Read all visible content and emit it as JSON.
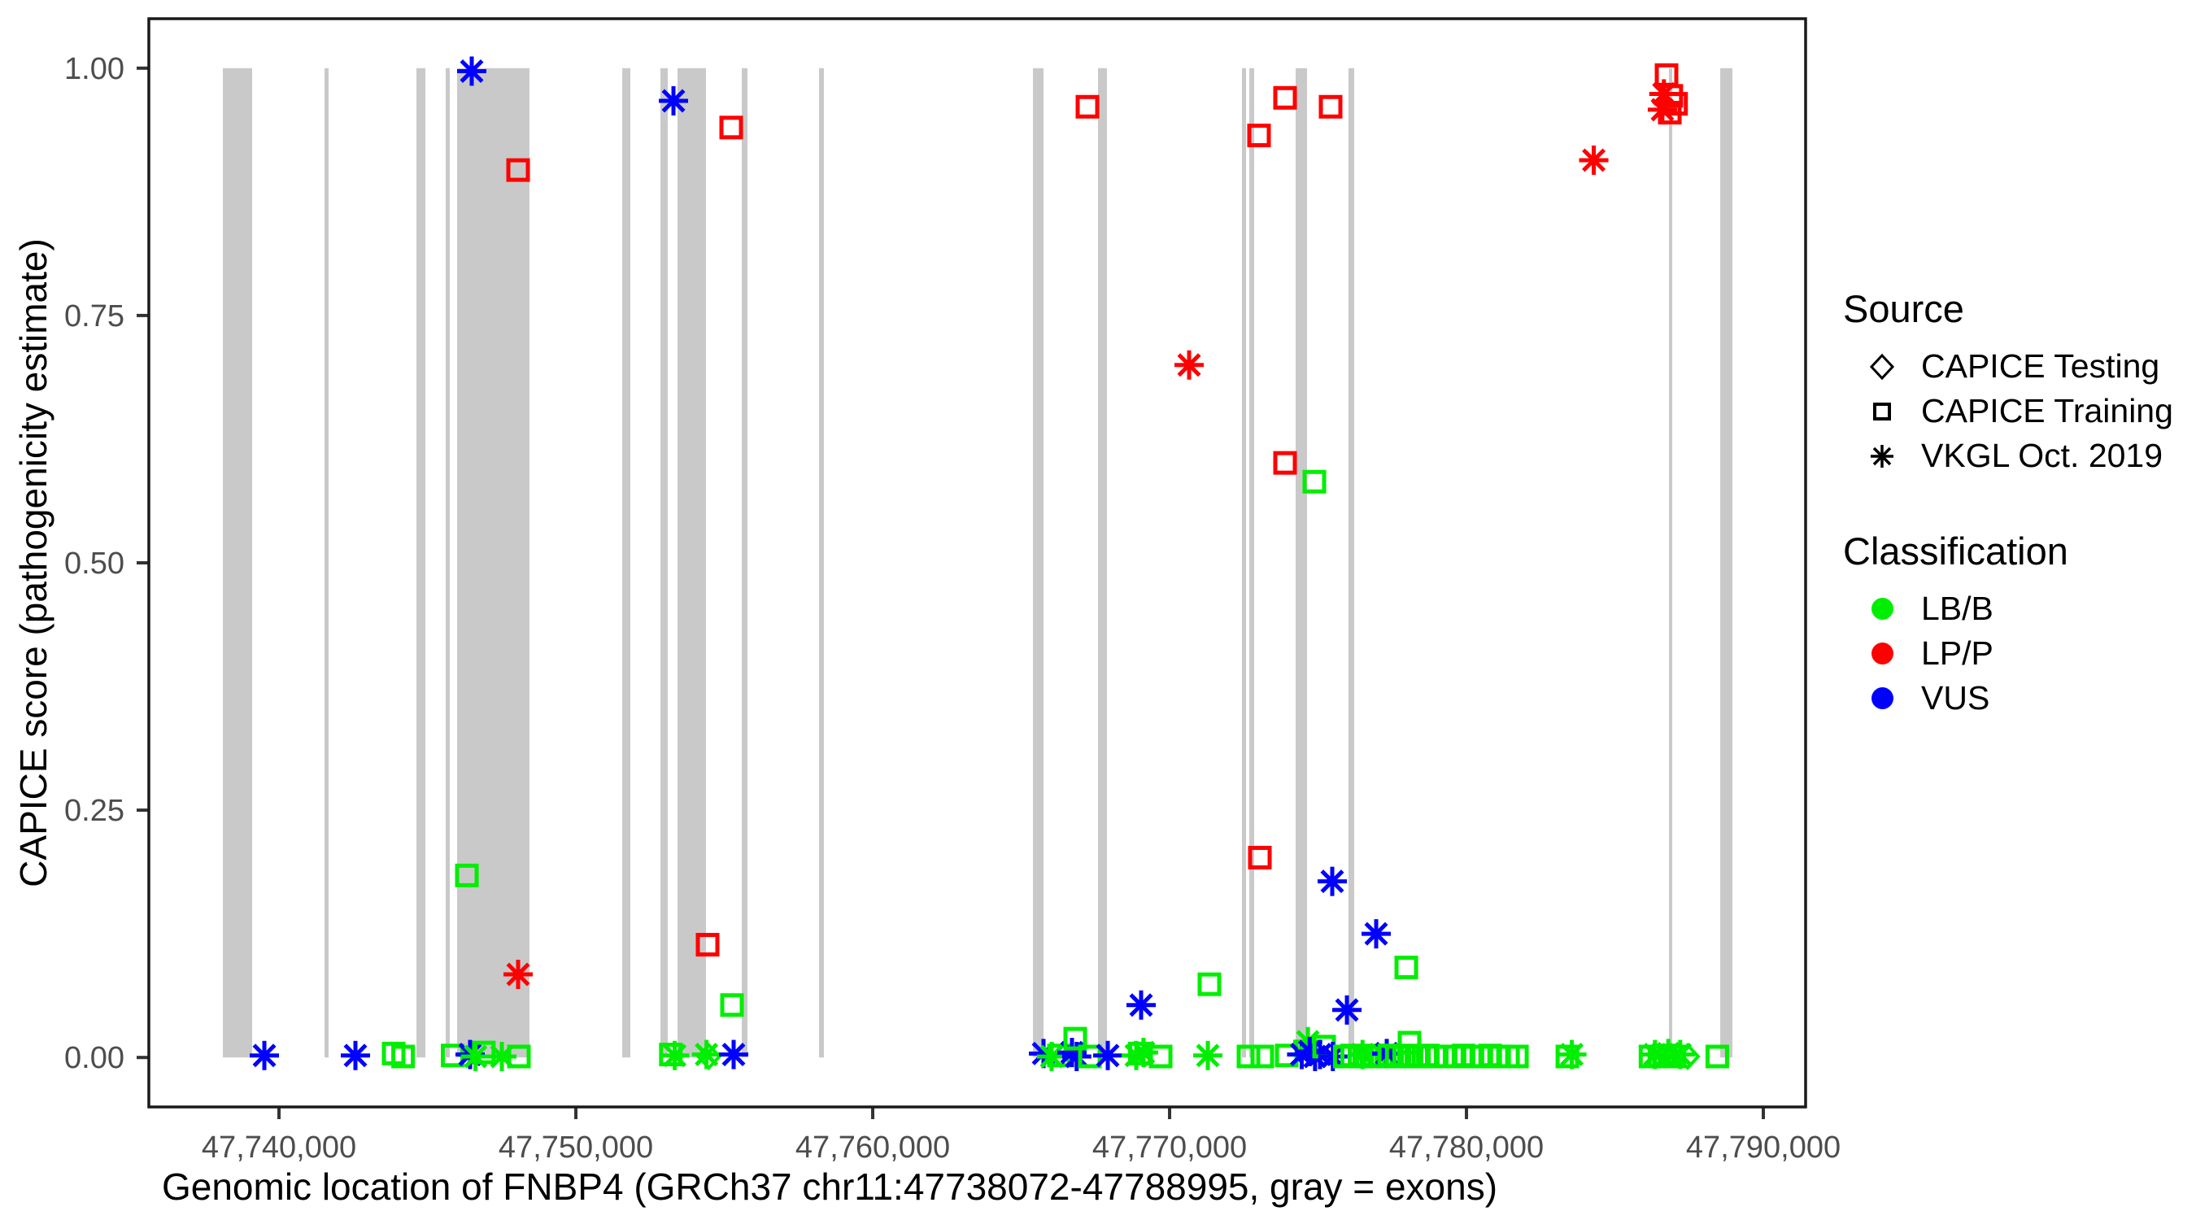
{
  "chart_data": {
    "type": "scatter",
    "xlabel": "Genomic location of FNBP4 (GRCh37 chr11:47738072-47788995, gray = exons)",
    "ylabel": "CAPICE score (pathogenicity estimate)",
    "x_domain": [
      47735616,
      47791424
    ],
    "y_domain": [
      -0.05,
      1.05
    ],
    "grid": "off",
    "x_ticks": [
      {
        "value": 47740000,
        "label": "47,740,000"
      },
      {
        "value": 47750000,
        "label": "47,750,000"
      },
      {
        "value": 47760000,
        "label": "47,760,000"
      },
      {
        "value": 47770000,
        "label": "47,770,000"
      },
      {
        "value": 47780000,
        "label": "47,780,000"
      },
      {
        "value": 47790000,
        "label": "47,790,000"
      }
    ],
    "y_ticks": [
      {
        "value": 0.0,
        "label": "0.00"
      },
      {
        "value": 0.25,
        "label": "0.25"
      },
      {
        "value": 0.5,
        "label": "0.50"
      },
      {
        "value": 0.75,
        "label": "0.75"
      },
      {
        "value": 1.0,
        "label": "1.00"
      }
    ],
    "exon_color": "#C9C9C9",
    "exon_y_span": [
      0.0,
      1.0
    ],
    "exons": [
      [
        47738110,
        47739096
      ],
      [
        47741534,
        47741671
      ],
      [
        47744630,
        47744932
      ],
      [
        47745616,
        47745753
      ],
      [
        47746000,
        47748438
      ],
      [
        47751562,
        47751836
      ],
      [
        47752849,
        47753096
      ],
      [
        47753425,
        47754384
      ],
      [
        47755589,
        47755781
      ],
      [
        47758192,
        47758356
      ],
      [
        47765397,
        47765753
      ],
      [
        47767589,
        47767890
      ],
      [
        47772438,
        47772575
      ],
      [
        47772685,
        47772849
      ],
      [
        47774247,
        47774630
      ],
      [
        47776027,
        47776219
      ],
      [
        47786822,
        47786932
      ],
      [
        47788548,
        47788959
      ]
    ],
    "shape_codes": {
      "s": "CAPICE Training (open square)",
      "a": "VKGL Oct. 2019 (asterisk)",
      "d": "CAPICE Testing (open diamond)"
    },
    "class_codes": {
      "g": "LB/B",
      "r": "LP/P",
      "b": "VUS"
    },
    "class_colors": {
      "g": "#00EE00",
      "r": "#FF0000",
      "b": "#0000FF"
    },
    "points": [
      [
        47739507,
        0.002,
        "a",
        "b"
      ],
      [
        47742575,
        0.002,
        "a",
        "b"
      ],
      [
        47743863,
        0.004,
        "s",
        "g"
      ],
      [
        47744180,
        0.001,
        "s",
        "g"
      ],
      [
        47745850,
        0.002,
        "s",
        "g"
      ],
      [
        47746329,
        0.184,
        "s",
        "g"
      ],
      [
        47746438,
        0.003,
        "a",
        "b"
      ],
      [
        47746493,
        0.997,
        "a",
        "b"
      ],
      [
        47746620,
        0.001,
        "a",
        "g"
      ],
      [
        47746900,
        0.005,
        "s",
        "g"
      ],
      [
        47747507,
        0.001,
        "a",
        "g"
      ],
      [
        47748055,
        0.897,
        "s",
        "r"
      ],
      [
        47748055,
        0.084,
        "a",
        "r"
      ],
      [
        47748082,
        0.001,
        "s",
        "g"
      ],
      [
        47753200,
        0.003,
        "s",
        "g"
      ],
      [
        47753330,
        0.002,
        "a",
        "g"
      ],
      [
        47753288,
        0.967,
        "a",
        "b"
      ],
      [
        47754400,
        0.003,
        "a",
        "g"
      ],
      [
        47754480,
        0.001,
        "d",
        "g"
      ],
      [
        47754438,
        0.114,
        "s",
        "r"
      ],
      [
        47755233,
        0.94,
        "s",
        "r"
      ],
      [
        47755260,
        0.053,
        "s",
        "g"
      ],
      [
        47755315,
        0.003,
        "a",
        "b"
      ],
      [
        47765753,
        0.004,
        "a",
        "b"
      ],
      [
        47766027,
        0.001,
        "a",
        "g"
      ],
      [
        47766274,
        0.002,
        "s",
        "g"
      ],
      [
        47766712,
        0.005,
        "a",
        "b"
      ],
      [
        47766870,
        0.001,
        "a",
        "b"
      ],
      [
        47766822,
        0.019,
        "s",
        "g"
      ],
      [
        47767233,
        0.961,
        "s",
        "r"
      ],
      [
        47767315,
        0.001,
        "s",
        "g"
      ],
      [
        47767918,
        0.002,
        "a",
        "b"
      ],
      [
        47768877,
        0.002,
        "a",
        "g"
      ],
      [
        47769000,
        0.004,
        "s",
        "g"
      ],
      [
        47769120,
        0.005,
        "a",
        "g"
      ],
      [
        47769041,
        0.053,
        "a",
        "b"
      ],
      [
        47769699,
        0.001,
        "s",
        "g"
      ],
      [
        47770658,
        0.7,
        "a",
        "r"
      ],
      [
        47771288,
        0.002,
        "a",
        "g"
      ],
      [
        47771342,
        0.074,
        "s",
        "g"
      ],
      [
        47772658,
        0.001,
        "s",
        "g"
      ],
      [
        47773013,
        0.932,
        "s",
        "r"
      ],
      [
        47773041,
        0.202,
        "s",
        "r"
      ],
      [
        47773123,
        0.001,
        "s",
        "g"
      ],
      [
        47773890,
        0.97,
        "s",
        "r"
      ],
      [
        47773890,
        0.601,
        "s",
        "r"
      ],
      [
        47773945,
        0.002,
        "s",
        "g"
      ],
      [
        47774450,
        0.003,
        "a",
        "b"
      ],
      [
        47774658,
        0.016,
        "a",
        "g"
      ],
      [
        47774720,
        0.006,
        "a",
        "b"
      ],
      [
        47774877,
        0.582,
        "s",
        "g"
      ],
      [
        47774900,
        0.001,
        "a",
        "b"
      ],
      [
        47775068,
        0.003,
        "a",
        "b"
      ],
      [
        47775205,
        0.011,
        "s",
        "g"
      ],
      [
        47775424,
        0.961,
        "s",
        "r"
      ],
      [
        47775479,
        0.178,
        "a",
        "b"
      ],
      [
        47775500,
        0.001,
        "a",
        "b"
      ],
      [
        47775900,
        0.001,
        "s",
        "g"
      ],
      [
        47775973,
        0.048,
        "a",
        "b"
      ],
      [
        47776150,
        0.002,
        "s",
        "g"
      ],
      [
        47776400,
        0.001,
        "s",
        "g"
      ],
      [
        47776500,
        0.003,
        "a",
        "g"
      ],
      [
        47776650,
        0.001,
        "s",
        "g"
      ],
      [
        47776900,
        0.002,
        "s",
        "g"
      ],
      [
        47776959,
        0.125,
        "a",
        "b"
      ],
      [
        47777150,
        0.001,
        "s",
        "g"
      ],
      [
        47777315,
        0.004,
        "a",
        "b"
      ],
      [
        47777400,
        0.002,
        "s",
        "g"
      ],
      [
        47777650,
        0.001,
        "s",
        "g"
      ],
      [
        47777900,
        0.002,
        "s",
        "g"
      ],
      [
        47777973,
        0.091,
        "s",
        "g"
      ],
      [
        47778082,
        0.015,
        "s",
        "g"
      ],
      [
        47778150,
        0.001,
        "s",
        "g"
      ],
      [
        47778400,
        0.001,
        "s",
        "g"
      ],
      [
        47778700,
        0.002,
        "s",
        "g"
      ],
      [
        47779000,
        0.001,
        "s",
        "g"
      ],
      [
        47779300,
        0.001,
        "s",
        "g"
      ],
      [
        47779600,
        0.001,
        "s",
        "g"
      ],
      [
        47779900,
        0.002,
        "s",
        "g"
      ],
      [
        47780200,
        0.001,
        "s",
        "g"
      ],
      [
        47780500,
        0.001,
        "s",
        "g"
      ],
      [
        47780800,
        0.002,
        "s",
        "g"
      ],
      [
        47781100,
        0.001,
        "s",
        "g"
      ],
      [
        47781400,
        0.001,
        "s",
        "g"
      ],
      [
        47781700,
        0.001,
        "s",
        "g"
      ],
      [
        47783400,
        0.001,
        "s",
        "g"
      ],
      [
        47783550,
        0.003,
        "a",
        "g"
      ],
      [
        47784288,
        0.907,
        "a",
        "r"
      ],
      [
        47786200,
        0.001,
        "s",
        "g"
      ],
      [
        47786350,
        0.003,
        "a",
        "g"
      ],
      [
        47786500,
        0.001,
        "s",
        "g"
      ],
      [
        47786650,
        0.002,
        "s",
        "g"
      ],
      [
        47786800,
        0.004,
        "a",
        "g"
      ],
      [
        47787000,
        0.001,
        "s",
        "g"
      ],
      [
        47787200,
        0.003,
        "a",
        "g"
      ],
      [
        47787450,
        0.001,
        "d",
        "g"
      ],
      [
        47788450,
        0.001,
        "s",
        "g"
      ],
      [
        47786740,
        0.993,
        "s",
        "r"
      ],
      [
        47786650,
        0.974,
        "a",
        "r"
      ],
      [
        47786900,
        0.972,
        "s",
        "r"
      ],
      [
        47786600,
        0.958,
        "a",
        "r"
      ],
      [
        47786850,
        0.955,
        "s",
        "r"
      ],
      [
        47787060,
        0.964,
        "s",
        "r"
      ]
    ]
  },
  "legend": {
    "source": {
      "title": "Source",
      "items": [
        {
          "label": "CAPICE Testing",
          "shape": "diamond"
        },
        {
          "label": "CAPICE Training",
          "shape": "square"
        },
        {
          "label": "VKGL Oct. 2019",
          "shape": "asterisk"
        }
      ]
    },
    "classification": {
      "title": "Classification",
      "items": [
        {
          "label": "LB/B",
          "color": "#00EE00"
        },
        {
          "label": "LP/P",
          "color": "#FF0000"
        },
        {
          "label": "VUS",
          "color": "#0000FF"
        }
      ]
    }
  }
}
